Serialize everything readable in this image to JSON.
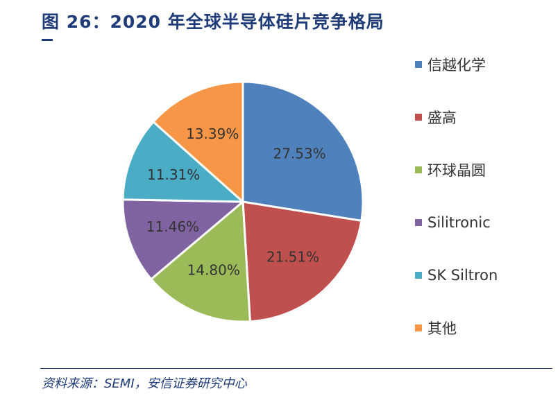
{
  "title": "图 26：2020 年全球半导体硅片竞争格局",
  "source": "资料来源：SEMI，安信证券研究中心",
  "chart_data": {
    "type": "pie",
    "title": "",
    "slices": [
      {
        "name": "信越化学",
        "value": 27.53,
        "label": "27.53%",
        "color": "#4f81bd"
      },
      {
        "name": "盛高",
        "value": 21.51,
        "label": "21.51%",
        "color": "#c0504d"
      },
      {
        "name": "环球晶圆",
        "value": 14.8,
        "label": "14.80%",
        "color": "#9bbb59"
      },
      {
        "name": "Silitronic",
        "value": 11.46,
        "label": "11.46%",
        "color": "#8064a2"
      },
      {
        "name": "SK Siltron",
        "value": 11.31,
        "label": "11.31%",
        "color": "#4bacc6"
      },
      {
        "name": "其他",
        "value": 13.39,
        "label": "13.39%",
        "color": "#f79646"
      }
    ],
    "legend_position": "right"
  }
}
